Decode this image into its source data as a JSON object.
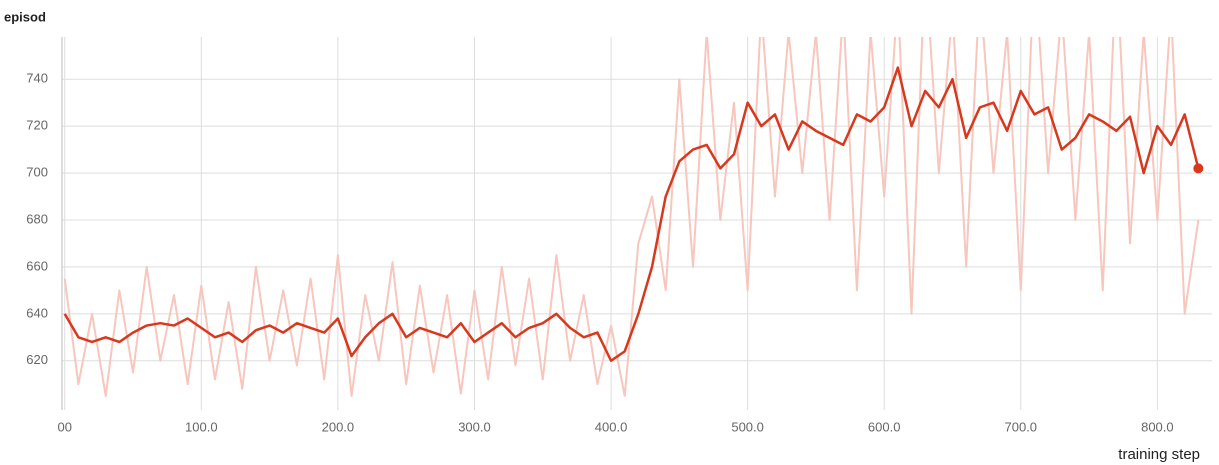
{
  "chart_data": {
    "type": "line",
    "title": "episod",
    "xlabel": "training step",
    "x": [
      0,
      10,
      20,
      30,
      40,
      50,
      60,
      70,
      80,
      90,
      100,
      110,
      120,
      130,
      140,
      150,
      160,
      170,
      180,
      190,
      200,
      210,
      220,
      230,
      240,
      250,
      260,
      270,
      280,
      290,
      300,
      310,
      320,
      330,
      340,
      350,
      360,
      370,
      380,
      390,
      400,
      410,
      420,
      430,
      440,
      450,
      460,
      470,
      480,
      490,
      500,
      510,
      520,
      530,
      540,
      550,
      560,
      570,
      580,
      590,
      600,
      610,
      620,
      630,
      640,
      650,
      660,
      670,
      680,
      690,
      700,
      710,
      720,
      730,
      740,
      750,
      760,
      770,
      780,
      790,
      800,
      810,
      820,
      830
    ],
    "series": [
      {
        "color": "#f7c6bd",
        "values": [
          655,
          610,
          640,
          605,
          650,
          615,
          660,
          620,
          648,
          610,
          652,
          612,
          645,
          608,
          660,
          620,
          650,
          618,
          655,
          612,
          665,
          605,
          648,
          620,
          662,
          610,
          652,
          615,
          648,
          606,
          650,
          612,
          660,
          618,
          655,
          612,
          665,
          620,
          648,
          610,
          635,
          605,
          670,
          690,
          650,
          740,
          660,
          760,
          680,
          730,
          650,
          770,
          690,
          760,
          700,
          760,
          680,
          770,
          650,
          760,
          690,
          775,
          640,
          790,
          700,
          770,
          660,
          780,
          700,
          760,
          650,
          790,
          700,
          770,
          680,
          760,
          650,
          790,
          670,
          760,
          680,
          770,
          640,
          680
        ]
      },
      {
        "color": "#d6391e",
        "values": [
          640,
          630,
          628,
          630,
          628,
          632,
          635,
          636,
          635,
          638,
          634,
          630,
          632,
          628,
          633,
          635,
          632,
          636,
          634,
          632,
          638,
          622,
          630,
          636,
          640,
          630,
          634,
          632,
          630,
          636,
          628,
          632,
          636,
          630,
          634,
          636,
          640,
          634,
          630,
          632,
          620,
          624,
          640,
          660,
          690,
          705,
          710,
          712,
          702,
          708,
          730,
          720,
          725,
          710,
          722,
          718,
          715,
          712,
          725,
          722,
          728,
          745,
          720,
          735,
          728,
          740,
          715,
          728,
          730,
          718,
          735,
          725,
          728,
          710,
          715,
          725,
          722,
          718,
          724,
          700,
          720,
          712,
          725,
          702
        ]
      }
    ],
    "xlim": [
      -2,
      840
    ],
    "ylim": [
      599,
      758
    ],
    "xticks": [
      {
        "value": 0,
        "label": "00"
      },
      {
        "value": 100,
        "label": "100.0"
      },
      {
        "value": 200,
        "label": "200.0"
      },
      {
        "value": 300,
        "label": "300.0"
      },
      {
        "value": 400,
        "label": "400.0"
      },
      {
        "value": 500,
        "label": "500.0"
      },
      {
        "value": 600,
        "label": "600.0"
      },
      {
        "value": 700,
        "label": "700.0"
      },
      {
        "value": 800,
        "label": "800.0"
      }
    ],
    "yticks": [
      620,
      640,
      660,
      680,
      700,
      720,
      740
    ],
    "grid": true
  }
}
